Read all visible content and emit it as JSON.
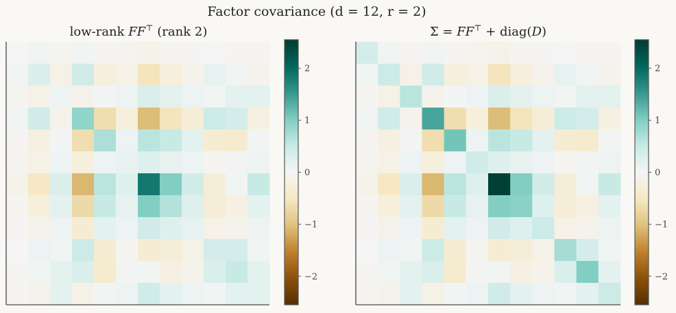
{
  "suptitle": "Factor covariance (d = 12, r = 2)",
  "chart_data": [
    {
      "type": "heatmap",
      "title": "low-rank FF^T (rank 2)",
      "colormap": "BrBG",
      "colorbar": {
        "range": [
          -2.55,
          2.55
        ],
        "ticks": [
          -2,
          -1,
          0,
          1,
          2
        ],
        "tick_labels": [
          "−2",
          "−1",
          "0",
          "1",
          "2"
        ]
      },
      "axes_ticks": "none",
      "values": [
        [
          0.0,
          0.05,
          -0.05,
          0.05,
          -0.02,
          -0.08,
          -0.12,
          -0.03,
          -0.02,
          0.0,
          -0.05,
          -0.02
        ],
        [
          0.05,
          0.3,
          -0.15,
          0.4,
          -0.25,
          -0.15,
          -0.55,
          -0.25,
          -0.1,
          0.15,
          0.05,
          -0.1
        ],
        [
          -0.05,
          -0.15,
          0.1,
          -0.1,
          0.02,
          0.1,
          0.3,
          0.2,
          0.1,
          0.05,
          0.2,
          0.2
        ],
        [
          0.05,
          0.4,
          -0.1,
          0.9,
          -0.65,
          -0.25,
          -1.05,
          -0.55,
          -0.3,
          0.45,
          0.35,
          -0.2
        ],
        [
          -0.02,
          -0.2,
          0.02,
          -0.65,
          0.7,
          0.1,
          0.6,
          0.5,
          0.2,
          -0.35,
          -0.4,
          0.03
        ],
        [
          -0.08,
          -0.15,
          0.1,
          -0.25,
          0.1,
          0.15,
          0.25,
          0.15,
          0.1,
          -0.05,
          0.03,
          0.1
        ],
        [
          -0.12,
          -0.5,
          0.3,
          -1.1,
          0.6,
          0.25,
          1.85,
          1.0,
          0.4,
          -0.3,
          0.05,
          0.5
        ],
        [
          -0.05,
          -0.25,
          0.2,
          -0.7,
          0.5,
          0.15,
          1.0,
          0.65,
          0.25,
          -0.3,
          -0.2,
          0.2
        ],
        [
          -0.03,
          -0.1,
          0.1,
          -0.35,
          0.2,
          0.1,
          0.4,
          0.25,
          0.15,
          -0.15,
          -0.1,
          0.1
        ],
        [
          0.0,
          0.1,
          0.05,
          0.45,
          -0.35,
          -0.05,
          -0.35,
          -0.3,
          -0.15,
          0.35,
          0.35,
          0.05
        ],
        [
          -0.02,
          0.05,
          0.2,
          0.3,
          -0.4,
          0.03,
          0.05,
          -0.2,
          -0.1,
          0.3,
          0.5,
          0.2
        ],
        [
          -0.05,
          -0.1,
          0.2,
          -0.15,
          0.03,
          0.1,
          0.4,
          0.2,
          0.1,
          0.05,
          0.2,
          0.2
        ]
      ]
    },
    {
      "type": "heatmap",
      "title": "Σ = FF^T + diag(D)",
      "colormap": "BrBG",
      "colorbar": {
        "range": [
          -2.55,
          2.55
        ],
        "ticks": [
          -2,
          -1,
          0,
          1,
          2
        ],
        "tick_labels": [
          "−2",
          "−1",
          "0",
          "1",
          "2"
        ]
      },
      "axes_ticks": "none",
      "values": [
        [
          0.35,
          0.05,
          -0.05,
          0.05,
          -0.02,
          -0.08,
          -0.12,
          -0.03,
          -0.02,
          0.0,
          -0.05,
          -0.02
        ],
        [
          0.05,
          0.45,
          -0.15,
          0.4,
          -0.25,
          -0.15,
          -0.55,
          -0.25,
          -0.1,
          0.15,
          0.05,
          -0.1
        ],
        [
          -0.05,
          -0.15,
          0.6,
          -0.1,
          0.02,
          0.1,
          0.3,
          0.2,
          0.1,
          0.05,
          0.2,
          0.2
        ],
        [
          0.05,
          0.4,
          -0.1,
          1.4,
          -0.65,
          -0.25,
          -1.05,
          -0.55,
          -0.3,
          0.45,
          0.35,
          -0.2
        ],
        [
          -0.02,
          -0.2,
          0.02,
          -0.65,
          1.1,
          0.1,
          0.6,
          0.5,
          0.2,
          -0.35,
          -0.4,
          0.03
        ],
        [
          -0.08,
          -0.15,
          0.1,
          -0.25,
          0.1,
          0.4,
          0.25,
          0.15,
          0.1,
          -0.05,
          0.03,
          0.1
        ],
        [
          -0.12,
          -0.5,
          0.3,
          -1.1,
          0.6,
          0.25,
          2.5,
          1.0,
          0.4,
          -0.3,
          0.05,
          0.5
        ],
        [
          -0.05,
          -0.25,
          0.2,
          -0.7,
          0.5,
          0.15,
          1.0,
          0.95,
          0.25,
          -0.3,
          -0.2,
          0.2
        ],
        [
          -0.03,
          -0.1,
          0.1,
          -0.35,
          0.2,
          0.1,
          0.4,
          0.25,
          0.45,
          -0.15,
          -0.1,
          0.1
        ],
        [
          0.0,
          0.1,
          0.05,
          0.45,
          -0.35,
          -0.05,
          -0.35,
          -0.3,
          -0.15,
          0.75,
          0.35,
          0.05
        ],
        [
          -0.02,
          0.05,
          0.2,
          0.3,
          -0.4,
          0.03,
          0.05,
          -0.2,
          -0.1,
          0.3,
          1.0,
          0.2
        ],
        [
          -0.05,
          -0.1,
          0.2,
          -0.15,
          0.03,
          0.1,
          0.4,
          0.2,
          0.1,
          0.05,
          0.2,
          0.45
        ]
      ]
    }
  ]
}
